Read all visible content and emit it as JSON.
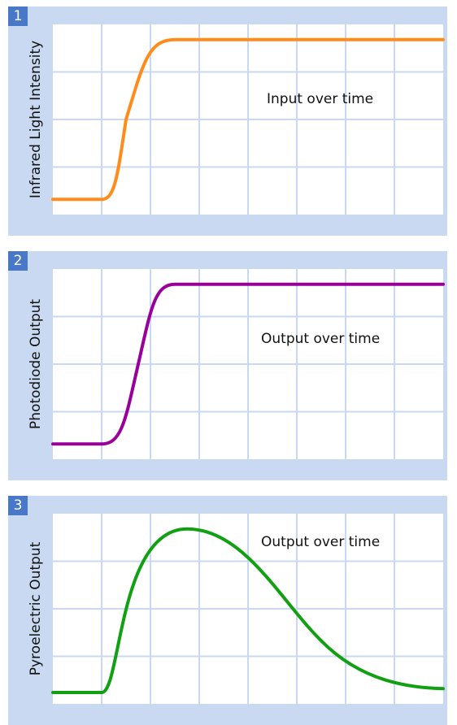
{
  "chart_data": [
    {
      "type": "line",
      "badge": "1",
      "ylabel": "Infrared Light Intensity",
      "annotation": "Input over time",
      "series": [
        {
          "color": "#ff8c1a",
          "shape": "step",
          "x": [
            0,
            1,
            1.5,
            2.5,
            8
          ],
          "y": [
            0.08,
            0.08,
            0.5,
            0.92,
            0.92
          ]
        }
      ],
      "grid": true,
      "xlim": [
        0,
        8
      ],
      "ylim": [
        0,
        1
      ]
    },
    {
      "type": "line",
      "badge": "2",
      "ylabel": "Photodiode Output",
      "annotation": "Output over time",
      "series": [
        {
          "color": "#990099",
          "shape": "step",
          "x": [
            0,
            1,
            1.75,
            2.5,
            8
          ],
          "y": [
            0.08,
            0.08,
            0.5,
            0.92,
            0.92
          ]
        }
      ],
      "grid": true,
      "xlim": [
        0,
        8
      ],
      "ylim": [
        0,
        1
      ]
    },
    {
      "type": "line",
      "badge": "3",
      "ylabel": "Pyroelectric Output",
      "annotation": "Output over time",
      "series": [
        {
          "color": "#11a011",
          "shape": "pulse",
          "x": [
            0,
            1,
            2.75,
            8
          ],
          "y": [
            0.06,
            0.06,
            0.92,
            0.08
          ]
        }
      ],
      "grid": true,
      "xlim": [
        0,
        8
      ],
      "ylim": [
        0,
        1
      ]
    }
  ]
}
